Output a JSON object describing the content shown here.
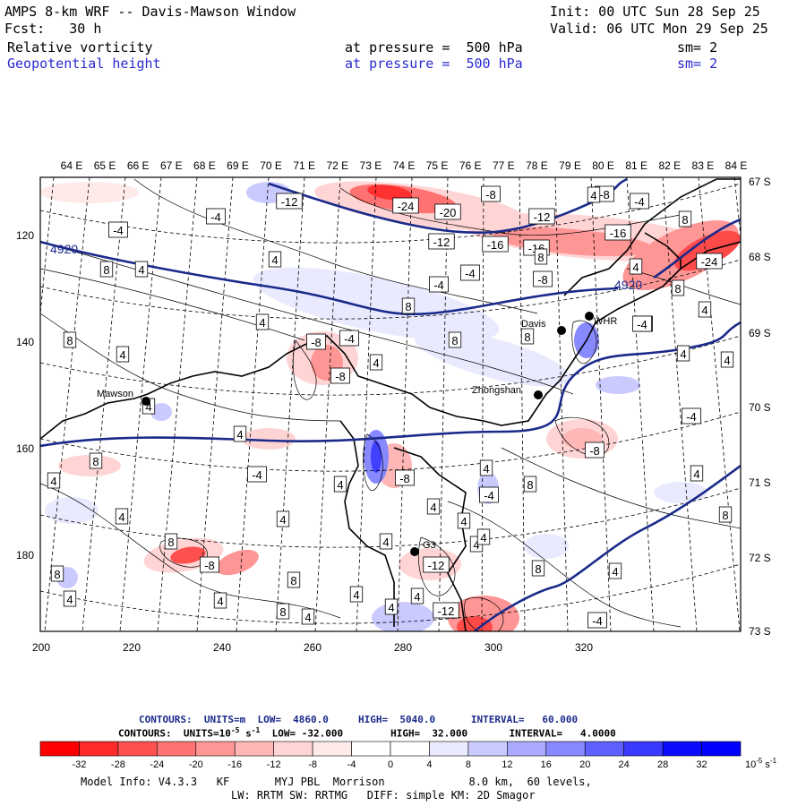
{
  "header": {
    "title": "AMPS 8-km WRF -- Davis-Mawson Window",
    "init": "Init: 00 UTC Sun 28 Sep 25",
    "fcst": "Fcst:   30 h",
    "valid": "Valid: 06 UTC Mon 29 Sep 25",
    "field1": "Relative vorticity",
    "field1_level": "at pressure =  500 hPa",
    "field1_sm": "sm= 2",
    "field2": "Geopotential height",
    "field2_level": "at pressure =  500 hPa",
    "field2_sm": "sm= 2"
  },
  "map": {
    "top_lon_labels": [
      "64 E",
      "65 E",
      "66 E",
      "67 E",
      "68 E",
      "69 E",
      "70 E",
      "71 E",
      "72 E",
      "73 E",
      "74 E",
      "75 E",
      "76 E",
      "77 E",
      "78 E",
      "79 E",
      "80 E",
      "81 E",
      "82 E",
      "83 E",
      "84 E"
    ],
    "right_lat_labels": [
      "67 S",
      "68 S",
      "69 S",
      "70 S",
      "71 S",
      "72 S",
      "73 S"
    ],
    "left_y_ticks": [
      "120",
      "140",
      "160",
      "180"
    ],
    "bottom_x_ticks": [
      "200",
      "220",
      "240",
      "260",
      "280",
      "300",
      "320"
    ],
    "stations": [
      {
        "name": "Mawson"
      },
      {
        "name": "Davis"
      },
      {
        "name": "Zhongshan"
      },
      {
        "name": "WHR"
      },
      {
        "name": "G3"
      }
    ],
    "height_labels": [
      "4920",
      "4920"
    ],
    "contour_labels": [
      "-12",
      "-4",
      "-4",
      "4",
      "8",
      "4",
      "4",
      "-4",
      "8",
      "-4",
      "-8",
      "8",
      "8",
      "-24",
      "-20",
      "-8",
      "-12",
      "-16",
      "-16",
      "-8",
      "-12",
      "-16",
      "-8",
      "-4",
      "-24",
      "8",
      "4",
      "-4",
      "4",
      "8",
      "4",
      "-8",
      "4",
      "4",
      "-4",
      "8",
      "4",
      "-8",
      "4",
      "-8",
      "4",
      "8",
      "4",
      "4",
      "8",
      "4",
      "-8",
      "4",
      "8",
      "4",
      "8",
      "4",
      "4",
      "-12",
      "4",
      "4",
      "8",
      "4",
      "8",
      "4",
      "-12",
      "8",
      "4",
      "-4",
      "4",
      "4",
      "4",
      "4",
      "-4",
      "-4",
      "8",
      "4",
      "-4",
      "8",
      "4",
      "-4",
      "4"
    ]
  },
  "footer": {
    "contours1": "CONTOURS:  UNITS=m  LOW=  4860.0     HIGH=  5040.0      INTERVAL=   60.000",
    "contours2": "CONTOURS:  UNITS=10",
    "contours2_rest": " s",
    "contours2_tail": "  LOW= -32.000        HIGH=  32.000       INTERVAL=   4.0000",
    "exp": "-5",
    "exp2": "-1",
    "colorbar_labels": [
      "-32",
      "-28",
      "-24",
      "-20",
      "-16",
      "-12",
      "-8",
      "-4",
      "0",
      "4",
      "8",
      "12",
      "16",
      "20",
      "24",
      "28",
      "32"
    ],
    "colorbar_unit": "10",
    "colorbar_unit_exp": "-5",
    "colorbar_unit_s": " s",
    "colorbar_unit_exp2": "-1",
    "colorbar_colors": [
      "#ff0000",
      "#ff2a2a",
      "#ff5050",
      "#ff7272",
      "#ff9696",
      "#ffb6b6",
      "#ffd4d4",
      "#ffeaea",
      "#ffffff",
      "#ffffff",
      "#eaeaff",
      "#cacaff",
      "#aaaaff",
      "#8888ff",
      "#6060ff",
      "#3a3aff",
      "#0a0aff"
    ],
    "model_info1": "Model Info: V4.3.3   KF       MYJ PBL  Morrison             8.0 km,  60 levels,",
    "model_info2": "LW: RRTM SW: RRTMG   DIFF: simple KM: 2D Smagor"
  },
  "colors": {
    "height_contour": "#1a2a8a",
    "vort_red": "#ff5a5a",
    "vort_blue": "#6a6aff"
  }
}
